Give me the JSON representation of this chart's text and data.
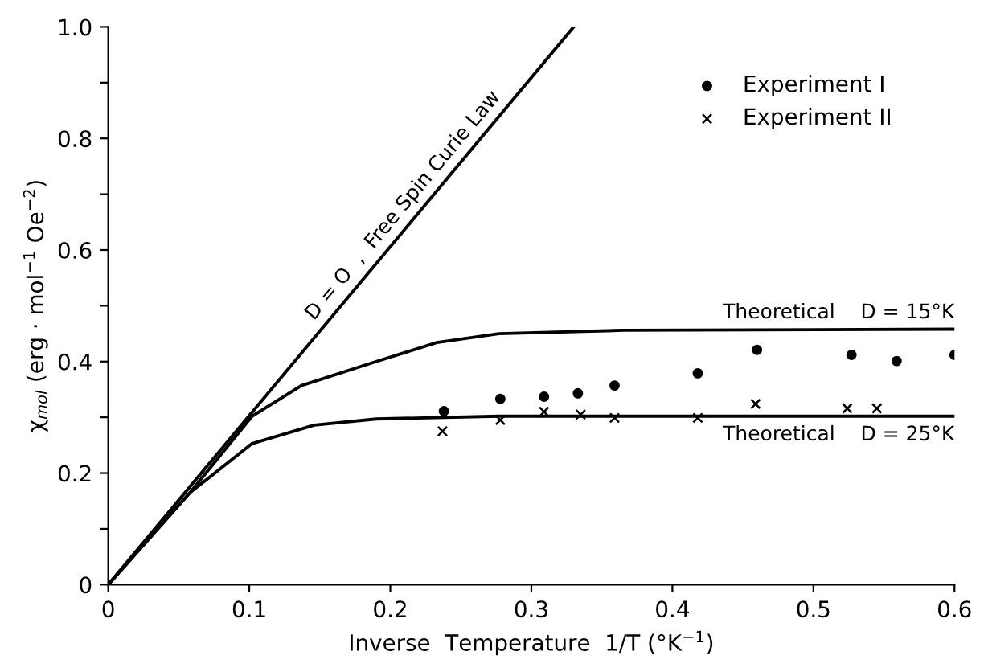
{
  "chart_data": {
    "type": "line",
    "xlabel": "Inverse  Temperature  1/T (°K$^{−1}$)",
    "ylabel": "χ$_{mol}$ (erg · mol$^{−1}$ Oe$^{−2}$)",
    "xlim": [
      0,
      0.6
    ],
    "ylim": [
      0,
      1.0
    ],
    "xticks": [
      0,
      0.1,
      0.2,
      0.3,
      0.4,
      0.5,
      0.6
    ],
    "yticks": [
      0,
      {
        "value": 0.1,
        "label": null
      },
      0.2,
      {
        "value": 0.3,
        "label": null
      },
      0.4,
      {
        "value": 0.5,
        "label": null
      },
      0.6,
      {
        "value": 0.7,
        "label": null
      },
      0.8,
      {
        "value": 0.9,
        "label": null
      },
      {
        "value": 1.0,
        "label": "1.0"
      }
    ],
    "grid": false,
    "legend": "top right",
    "series": [
      {
        "type": "line",
        "color": "#000000",
        "marker": "none",
        "x": [
          0,
          0.33
        ],
        "values": [
          0,
          1.0
        ]
      },
      {
        "type": "line",
        "color": "#000000",
        "marker": "none",
        "x": [
          0,
          0.058,
          0.102,
          0.137,
          0.19,
          0.233,
          0.277,
          0.365,
          0.6
        ],
        "values": [
          0,
          0.165,
          0.302,
          0.357,
          0.4,
          0.434,
          0.45,
          0.456,
          0.458
        ]
      },
      {
        "type": "line",
        "color": "#000000",
        "marker": "none",
        "x": [
          0,
          0.058,
          0.102,
          0.146,
          0.19,
          0.277,
          0.6
        ],
        "values": [
          0,
          0.165,
          0.253,
          0.286,
          0.297,
          0.302,
          0.302
        ]
      },
      {
        "type": "scatter",
        "name": "Experiment I",
        "color": "#000000",
        "marker": "circle",
        "x": [
          0.238,
          0.278,
          0.309,
          0.333,
          0.359,
          0.418,
          0.46,
          0.527,
          0.559,
          0.6
        ],
        "values": [
          0.311,
          0.333,
          0.337,
          0.343,
          0.357,
          0.379,
          0.421,
          0.412,
          0.401,
          0.412
        ]
      },
      {
        "type": "scatter",
        "name": "Experiment II",
        "color": "#000000",
        "marker": "cross",
        "x": [
          0.237,
          0.278,
          0.309,
          0.335,
          0.359,
          0.418,
          0.459,
          0.524,
          0.545
        ],
        "values": [
          0.275,
          0.295,
          0.31,
          0.305,
          0.299,
          0.299,
          0.324,
          0.316,
          0.316
        ]
      }
    ],
    "annotations": [
      "D = O  ,  Free Spin Curie Law",
      "Theoretical    D = 15°K",
      "Theoretical    D = 25°K"
    ]
  }
}
